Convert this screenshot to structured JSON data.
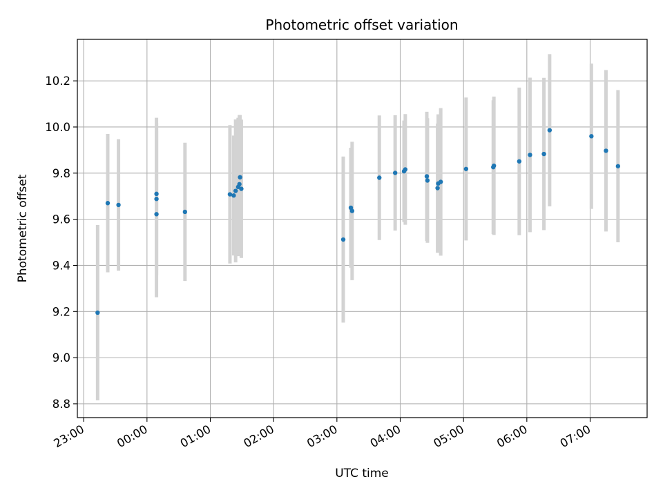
{
  "chart_data": {
    "type": "scatter",
    "title": "Photometric offset variation",
    "xlabel": "UTC time",
    "ylabel": "Photometric offset",
    "x_ticks": [
      "23:00",
      "00:00",
      "01:00",
      "02:00",
      "03:00",
      "04:00",
      "05:00",
      "06:00",
      "07:00"
    ],
    "y_ticks": [
      "8.8",
      "9.0",
      "9.2",
      "9.4",
      "9.6",
      "9.8",
      "10.0",
      "10.2"
    ],
    "xlim_hours": [
      -1.1,
      7.9
    ],
    "ylim": [
      8.74,
      10.38
    ],
    "grid": true,
    "colors": {
      "point": "#1f77b4",
      "errorbar": "#d3d3d3",
      "grid": "#b0b0b0",
      "frame": "#000000"
    },
    "x_unit": "hours after 00:00 UTC (negative = before midnight)",
    "points": [
      {
        "x": -0.78,
        "y": 9.195,
        "err": 0.38
      },
      {
        "x": -0.62,
        "y": 9.67,
        "err": 0.3
      },
      {
        "x": -0.45,
        "y": 9.662,
        "err": 0.285
      },
      {
        "x": 0.15,
        "y": 9.71,
        "err": 0.33
      },
      {
        "x": 0.15,
        "y": 9.688,
        "err": 0.33
      },
      {
        "x": 0.15,
        "y": 9.622,
        "err": 0.36
      },
      {
        "x": 0.6,
        "y": 9.632,
        "err": 0.3
      },
      {
        "x": 1.31,
        "y": 9.708,
        "err": 0.3
      },
      {
        "x": 1.37,
        "y": 9.703,
        "err": 0.26
      },
      {
        "x": 1.4,
        "y": 9.723,
        "err": 0.31
      },
      {
        "x": 1.44,
        "y": 9.74,
        "err": 0.3
      },
      {
        "x": 1.46,
        "y": 9.752,
        "err": 0.3
      },
      {
        "x": 1.47,
        "y": 9.782,
        "err": 0.27
      },
      {
        "x": 1.49,
        "y": 9.732,
        "err": 0.3
      },
      {
        "x": 3.1,
        "y": 9.512,
        "err": 0.36
      },
      {
        "x": 3.22,
        "y": 9.65,
        "err": 0.26
      },
      {
        "x": 3.24,
        "y": 9.636,
        "err": 0.3
      },
      {
        "x": 3.67,
        "y": 9.78,
        "err": 0.27
      },
      {
        "x": 3.92,
        "y": 9.801,
        "err": 0.25
      },
      {
        "x": 4.06,
        "y": 9.808,
        "err": 0.22
      },
      {
        "x": 4.08,
        "y": 9.816,
        "err": 0.24
      },
      {
        "x": 4.42,
        "y": 9.786,
        "err": 0.28
      },
      {
        "x": 4.43,
        "y": 9.768,
        "err": 0.27
      },
      {
        "x": 4.59,
        "y": 9.735,
        "err": 0.28
      },
      {
        "x": 4.6,
        "y": 9.755,
        "err": 0.3
      },
      {
        "x": 4.64,
        "y": 9.762,
        "err": 0.32
      },
      {
        "x": 5.04,
        "y": 9.818,
        "err": 0.31
      },
      {
        "x": 5.47,
        "y": 9.826,
        "err": 0.29
      },
      {
        "x": 5.48,
        "y": 9.832,
        "err": 0.3
      },
      {
        "x": 5.88,
        "y": 9.851,
        "err": 0.32
      },
      {
        "x": 6.05,
        "y": 9.879,
        "err": 0.335
      },
      {
        "x": 6.27,
        "y": 9.883,
        "err": 0.33
      },
      {
        "x": 6.36,
        "y": 9.986,
        "err": 0.33
      },
      {
        "x": 7.02,
        "y": 9.96,
        "err": 0.315
      },
      {
        "x": 7.25,
        "y": 9.897,
        "err": 0.35
      },
      {
        "x": 7.44,
        "y": 9.83,
        "err": 0.33
      }
    ]
  }
}
